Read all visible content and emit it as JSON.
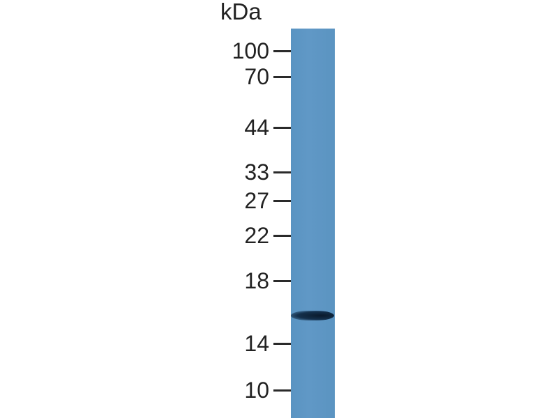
{
  "blot": {
    "unit_label": "kDa",
    "markers": [
      {
        "label": "100",
        "kda": 100
      },
      {
        "label": "70",
        "kda": 70
      },
      {
        "label": "44",
        "kda": 44
      },
      {
        "label": "33",
        "kda": 33
      },
      {
        "label": "27",
        "kda": 27
      },
      {
        "label": "22",
        "kda": 22
      },
      {
        "label": "18",
        "kda": 18
      },
      {
        "label": "14",
        "kda": 14
      },
      {
        "label": "10",
        "kda": 10
      }
    ],
    "lane_color": "#5b96c4",
    "band_color": "#0f2236",
    "bands": [
      {
        "approx_kda": 16
      }
    ]
  }
}
